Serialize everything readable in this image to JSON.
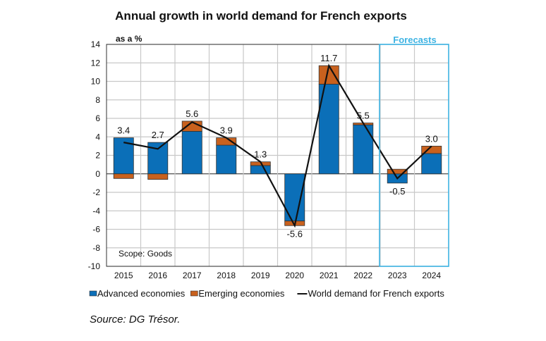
{
  "chart_data": {
    "type": "bar",
    "stacked": true,
    "title": "Annual growth in world demand for French exports",
    "ylabel": "as a %",
    "annotation": "Scope: Goods",
    "forecast_label": "Forecasts",
    "forecast_categories": [
      "2023",
      "2024"
    ],
    "source": "Source: DG Trésor.",
    "ylim": [
      -10,
      14
    ],
    "yticks": [
      14,
      12,
      10,
      8,
      6,
      4,
      2,
      0,
      -2,
      -4,
      -6,
      -8,
      -10
    ],
    "grid": true,
    "legend_placement": "bottom",
    "categories": [
      "2015",
      "2016",
      "2017",
      "2018",
      "2019",
      "2020",
      "2021",
      "2022",
      "2023",
      "2024"
    ],
    "series": [
      {
        "name": "Advanced economies",
        "kind": "bar",
        "color": "#0b6fb8",
        "values": [
          3.9,
          3.4,
          4.6,
          3.1,
          0.9,
          -5.1,
          9.7,
          5.3,
          -1.0,
          2.2
        ]
      },
      {
        "name": "Emerging economies",
        "kind": "bar",
        "color": "#c8611e",
        "values": [
          -0.5,
          -0.6,
          1.1,
          0.8,
          0.4,
          -0.5,
          2.0,
          0.2,
          0.5,
          0.8
        ]
      },
      {
        "name": "World demand for French exports",
        "kind": "line",
        "color": "#111111",
        "values": [
          3.4,
          2.7,
          5.6,
          3.9,
          1.3,
          -5.6,
          11.7,
          5.5,
          -0.5,
          3.0
        ],
        "labels": [
          "3.4",
          "2.7",
          "5.6",
          "3.9",
          "1.3",
          "-5.6",
          "11.7",
          "5.5",
          "-0.5",
          "3.0"
        ]
      }
    ],
    "forecast_color": "#3db3e3"
  }
}
